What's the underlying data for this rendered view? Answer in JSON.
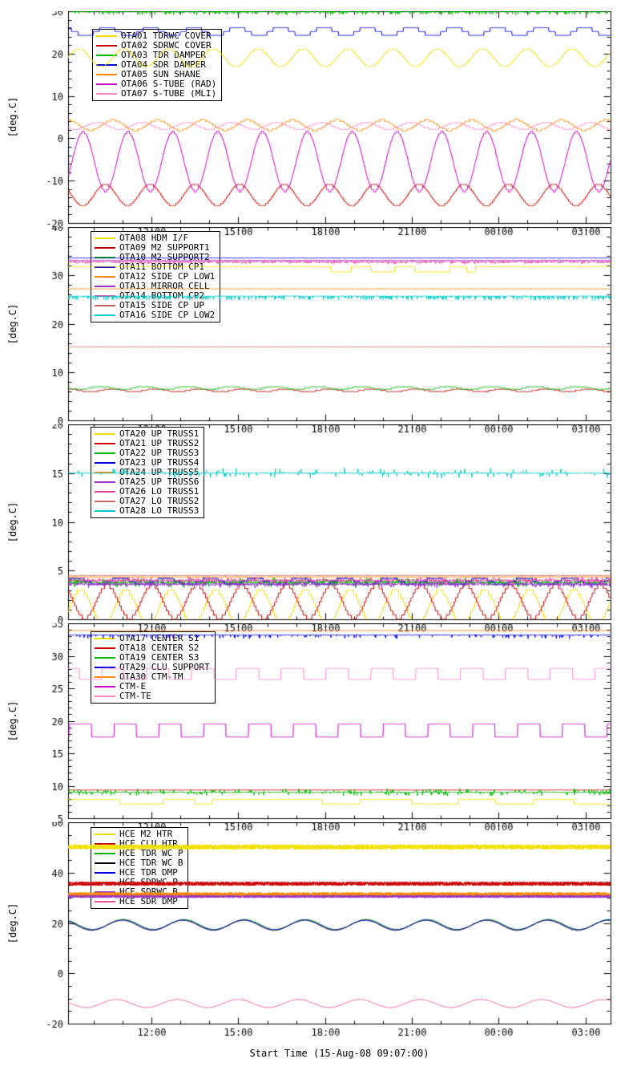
{
  "page": {
    "background": "#ffffff",
    "axis_color": "#000000",
    "x_axis_label": "Start Time (15-Aug-08 09:07:00)",
    "y_axis_label": "[deg.C]",
    "x_start_hour": 9.117,
    "x_end_hour": 27.867,
    "x_ticks": {
      "labels": [
        "12:00",
        "15:00",
        "18:00",
        "21:00",
        "00:00",
        "03:00"
      ],
      "hours": [
        12,
        15,
        18,
        21,
        24,
        27
      ]
    }
  },
  "chart_data": [
    {
      "name": "panel-1",
      "type": "line",
      "ylabel": "[deg.C]",
      "ylim": [
        -20,
        30
      ],
      "yticks": [
        30,
        20,
        10,
        0,
        -10,
        -20
      ],
      "yminor": 2,
      "xlim_hours": [
        9.117,
        27.867
      ],
      "series": [
        {
          "name": "OTA01 TDRWC COVER",
          "color": "#f2e000",
          "gen": {
            "kind": "qsine",
            "base": 19.0,
            "amp": 2.1,
            "period": 1.55,
            "phase": 0.8,
            "quant": 0.5,
            "noise": 0.04
          }
        },
        {
          "name": "OTA02 SDRWC COVER",
          "color": "#cc0000",
          "gen": {
            "kind": "qsine",
            "base": -13.4,
            "amp": 2.5,
            "period": 1.55,
            "phase": 3.4,
            "quant": 0.5,
            "noise": 0.04
          }
        },
        {
          "name": "OTA03 TDR DAMPER",
          "color": "#00bb00",
          "gen": {
            "kind": "spiky",
            "base": 29.95,
            "noise": 0.15,
            "prob": 0.3,
            "amp": 0.7,
            "sign": 0
          }
        },
        {
          "name": "OTA04 SDR DAMPER",
          "color": "#0000dd",
          "gen": {
            "kind": "qsine",
            "base": 25.2,
            "amp": 1.0,
            "period": 1.5,
            "phase": 1.7,
            "quant": 0.9,
            "noise": 0.03
          }
        },
        {
          "name": "OTA05 SUN SHANE",
          "color": "#ff8800",
          "gen": {
            "kind": "qsine",
            "base": 3.1,
            "amp": 1.2,
            "period": 1.55,
            "phase": 2.3,
            "quant": 0.45,
            "noise": 0.05
          }
        },
        {
          "name": "OTA06 S-TUBE (RAD)",
          "color": "#cc00cc",
          "gen": {
            "kind": "qsine",
            "base": -5.5,
            "amp": 7.0,
            "period": 1.55,
            "phase": 0.2,
            "quant": 0.6,
            "noise": 0.04
          }
        },
        {
          "name": "OTA07 S-TUBE (MLI)",
          "color": "#ff88cc",
          "gen": {
            "kind": "qsine",
            "base": 2.9,
            "amp": 0.8,
            "period": 1.55,
            "phase": 4.5,
            "quant": 0.4,
            "noise": 0.05
          }
        }
      ]
    },
    {
      "name": "panel-2",
      "type": "line",
      "ylabel": "[deg.C]",
      "ylim": [
        0,
        40
      ],
      "yticks": [
        40,
        30,
        20,
        10,
        0
      ],
      "yminor": 2,
      "xlim_hours": [
        9.117,
        27.867
      ],
      "series": [
        {
          "name": "OTA08 HDM I/F",
          "color": "#f2e000",
          "gen": {
            "kind": "dips",
            "base": 31.8,
            "depth": 1.1,
            "windows": [
              [
                18.2,
                18.9
              ],
              [
                19.6,
                20.4
              ],
              [
                21.1,
                22.3
              ],
              [
                22.9,
                23.2
              ]
            ],
            "noise": 0.05
          }
        },
        {
          "name": "OTA09 M2 SUPPORT1",
          "color": "#cc0000",
          "gen": {
            "kind": "qsine",
            "base": 6.2,
            "amp": 0.3,
            "period": 1.5,
            "phase": 1.0,
            "quant": 0.25,
            "noise": 0.07
          }
        },
        {
          "name": "OTA10 M2 SUPPORT2",
          "color": "#00bb00",
          "gen": {
            "kind": "qsine",
            "base": 6.7,
            "amp": 0.35,
            "period": 1.5,
            "phase": 2.6,
            "quant": 0.25,
            "noise": 0.07
          }
        },
        {
          "name": "OTA11 BOTTOM CP1",
          "color": "#0000dd",
          "gen": {
            "kind": "flat",
            "base": 33.6,
            "noise": 0.06
          }
        },
        {
          "name": "OTA12 SIDE CP LOW1",
          "color": "#ff8800",
          "gen": {
            "kind": "flat",
            "base": 27.2,
            "noise": 0.05
          }
        },
        {
          "name": "OTA13 MIRROR CELL",
          "color": "#9933cc",
          "gen": {
            "kind": "flat",
            "base": 33.1,
            "noise": 0.06
          }
        },
        {
          "name": "OTA14 BOTTOM CP2",
          "color": "#ee44aa",
          "gen": {
            "kind": "spiky",
            "base": 32.9,
            "noise": 0.1,
            "prob": 0.22,
            "amp": 0.45,
            "sign": -1
          }
        },
        {
          "name": "OTA15 SIDE CP UP",
          "color": "#cc6666",
          "gen": {
            "kind": "flat",
            "base": 15.2,
            "noise": 0.03
          }
        },
        {
          "name": "OTA16 SIDE CP LOW2",
          "color": "#00cccc",
          "gen": {
            "kind": "spiky",
            "base": 25.7,
            "noise": 0.07,
            "prob": 0.18,
            "amp": 0.8,
            "sign": -1
          }
        }
      ]
    },
    {
      "name": "panel-3",
      "type": "line",
      "ylabel": "[deg.C]",
      "ylim": [
        0,
        20
      ],
      "yticks": [
        20,
        15,
        10,
        5,
        0
      ],
      "yminor": 1,
      "xlim_hours": [
        9.117,
        27.867
      ],
      "series": [
        {
          "name": "OTA20 UP TRUSS1",
          "color": "#f2e000",
          "gen": {
            "kind": "qsine",
            "base": 1.2,
            "amp": 1.8,
            "period": 1.55,
            "phase": 0.5,
            "quant": 0.45,
            "noise": 0.05
          }
        },
        {
          "name": "OTA21 UP TRUSS2",
          "color": "#cc0000",
          "gen": {
            "kind": "qsine",
            "base": 1.8,
            "amp": 1.7,
            "period": 1.55,
            "phase": 3.1,
            "quant": 0.45,
            "noise": 0.05
          }
        },
        {
          "name": "OTA22 UP TRUSS3",
          "color": "#00bb00",
          "gen": {
            "kind": "spiky",
            "base": 3.8,
            "noise": 0.14,
            "prob": 0.2,
            "amp": 0.4,
            "sign": 0
          }
        },
        {
          "name": "OTA23 UP TRUSS4",
          "color": "#0000dd",
          "gen": {
            "kind": "qsine",
            "base": 3.9,
            "amp": 0.35,
            "period": 1.55,
            "phase": 1.2,
            "quant": 0.3,
            "noise": 0.07
          }
        },
        {
          "name": "OTA24 UP TRUSS5",
          "color": "#ff8800",
          "gen": {
            "kind": "flat",
            "base": 4.35,
            "noise": 0.05
          }
        },
        {
          "name": "OTA25 UP TRUSS6",
          "color": "#9933cc",
          "gen": {
            "kind": "spiky",
            "base": 3.6,
            "noise": 0.12,
            "prob": 0.15,
            "amp": 0.3,
            "sign": 0
          }
        },
        {
          "name": "OTA26 LO TRUSS1",
          "color": "#ee44aa",
          "gen": {
            "kind": "spiky",
            "base": 4.0,
            "noise": 0.1,
            "prob": 0.12,
            "amp": 0.3,
            "sign": 0
          }
        },
        {
          "name": "OTA27 LO TRUSS2",
          "color": "#cc6666",
          "gen": {
            "kind": "flat",
            "base": 4.5,
            "noise": 0.04
          }
        },
        {
          "name": "OTA28 LO TRUSS3",
          "color": "#00cccc",
          "gen": {
            "kind": "spiky",
            "base": 15.0,
            "noise": 0.05,
            "prob": 0.07,
            "amp": 0.5,
            "sign": 0
          }
        }
      ]
    },
    {
      "name": "panel-4",
      "type": "line",
      "ylabel": "[deg.C]",
      "ylim": [
        5,
        35
      ],
      "yticks": [
        35,
        30,
        25,
        20,
        15,
        10,
        5
      ],
      "yminor": 1,
      "xlim_hours": [
        9.117,
        27.867
      ],
      "series": [
        {
          "name": "OTA17 CENTER S1",
          "color": "#f2e000",
          "gen": {
            "kind": "dips",
            "base": 7.9,
            "depth": 0.7,
            "windows": [
              [
                10.9,
                12.4
              ],
              [
                13.5,
                14.1
              ],
              [
                17.9,
                19.2
              ],
              [
                21.0,
                22.6
              ],
              [
                23.9,
                25.2
              ],
              [
                26.6,
                27.9
              ]
            ],
            "noise": 0.05
          }
        },
        {
          "name": "OTA18 CENTER S2",
          "color": "#cc0000",
          "gen": {
            "kind": "flat",
            "base": 9.35,
            "noise": 0.04
          }
        },
        {
          "name": "OTA19 CENTER S3",
          "color": "#00bb00",
          "gen": {
            "kind": "spiky",
            "base": 9.0,
            "noise": 0.07,
            "prob": 0.15,
            "amp": 0.5,
            "sign": 0
          }
        },
        {
          "name": "OTA29 CLU SUPPORT",
          "color": "#0000dd",
          "gen": {
            "kind": "spiky",
            "base": 33.2,
            "noise": 0.06,
            "prob": 0.07,
            "amp": 0.55,
            "sign": -1
          }
        },
        {
          "name": "OTA30 CTM-TM",
          "color": "#ff8800",
          "gen": {
            "kind": "flat",
            "base": 33.9,
            "noise": 0.05
          }
        },
        {
          "name": "CTM-E",
          "color": "#cc00cc",
          "gen": {
            "kind": "square",
            "base": 18.5,
            "amp": 1.0,
            "period": 1.55,
            "phase": 0.6,
            "noise": 0.03
          }
        },
        {
          "name": "CTM-TE",
          "color": "#ff88cc",
          "gen": {
            "kind": "square",
            "base": 27.2,
            "amp": 0.85,
            "period": 1.55,
            "phase": 2.3,
            "noise": 0.03
          }
        }
      ]
    },
    {
      "name": "panel-5",
      "type": "line",
      "ylabel": "[deg.C]",
      "ylim": [
        -20,
        60
      ],
      "yticks": [
        60,
        40,
        20,
        0,
        -20
      ],
      "yminor": 5,
      "xlim_hours": [
        9.117,
        27.867
      ],
      "series": [
        {
          "name": "HCE M2 HTR",
          "color": "#f2e000",
          "gen": {
            "kind": "flat",
            "base": 50.2,
            "noise": 1.0,
            "dt": 0.004
          }
        },
        {
          "name": "HCE CLU HTR",
          "color": "#cc0000",
          "gen": {
            "kind": "flat",
            "base": 35.6,
            "noise": 0.8,
            "dt": 0.004
          }
        },
        {
          "name": "HCE TDR WC P",
          "color": "#00bb00",
          "gen": {
            "kind": "sine",
            "base": 19.4,
            "amp": 2.0,
            "period": 2.1,
            "phase": 0.0,
            "noise": 0.15
          }
        },
        {
          "name": "HCE TDR WC B",
          "color": "#000000",
          "gen": {
            "kind": "sine",
            "base": 19.1,
            "amp": 2.0,
            "period": 2.1,
            "phase": 0.12,
            "noise": 0.1
          }
        },
        {
          "name": "HCE TDR DMP",
          "color": "#0000dd",
          "gen": {
            "kind": "sine",
            "base": 19.25,
            "amp": 1.9,
            "period": 2.1,
            "phase": 0.06,
            "noise": 0.1
          }
        },
        {
          "name": "HCE SDRWC P",
          "color": "#ff8800",
          "gen": {
            "kind": "flat",
            "base": 31.3,
            "noise": 0.9,
            "dt": 0.004
          }
        },
        {
          "name": "HCE SDRWC B",
          "color": "#9933cc",
          "gen": {
            "kind": "flat",
            "base": 30.5,
            "noise": 0.55,
            "dt": 0.004
          }
        },
        {
          "name": "HCE SDR DMP",
          "color": "#ee5599",
          "gen": {
            "kind": "sine",
            "base": -12.0,
            "amp": 1.6,
            "period": 2.1,
            "phase": 0.7,
            "noise": 0.12
          }
        }
      ]
    }
  ]
}
